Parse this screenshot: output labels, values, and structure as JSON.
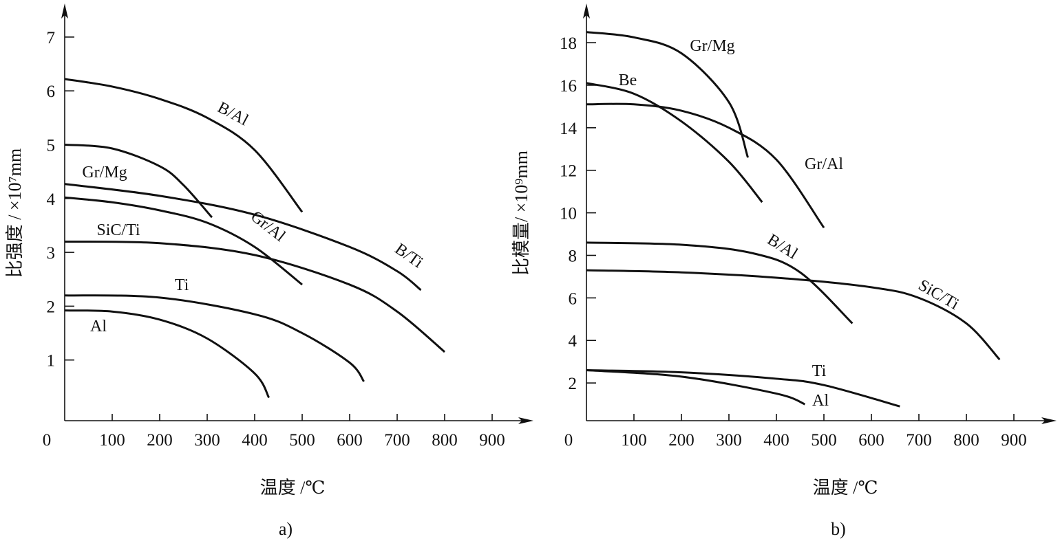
{
  "chart_data": [
    {
      "type": "line",
      "panel_label": "a)",
      "xlabel": "温度 /℃",
      "ylabel": "比强度 / ×10⁷mm",
      "xlim": [
        0,
        900
      ],
      "ylim": [
        0,
        7
      ],
      "x_ticks": [
        0,
        100,
        200,
        300,
        400,
        500,
        600,
        700,
        800,
        900
      ],
      "y_ticks": [
        1,
        2,
        3,
        4,
        5,
        6,
        7
      ],
      "series": [
        {
          "name": "B/Al",
          "x": [
            0,
            100,
            200,
            300,
            400,
            500
          ],
          "y": [
            6.22,
            6.08,
            5.85,
            5.5,
            4.9,
            3.75
          ]
        },
        {
          "name": "Gr/Mg",
          "x": [
            0,
            100,
            200,
            250,
            310
          ],
          "y": [
            5.0,
            4.93,
            4.6,
            4.25,
            3.65
          ]
        },
        {
          "name": "B/Ti",
          "x": [
            0,
            200,
            400,
            600,
            700,
            750
          ],
          "y": [
            4.27,
            4.05,
            3.7,
            3.1,
            2.65,
            2.3
          ]
        },
        {
          "name": "Gr/Al",
          "x": [
            0,
            100,
            200,
            300,
            400,
            500
          ],
          "y": [
            4.02,
            3.93,
            3.78,
            3.55,
            3.1,
            2.4
          ]
        },
        {
          "name": "SiC/Ti",
          "x": [
            0,
            200,
            400,
            600,
            700,
            800
          ],
          "y": [
            3.2,
            3.17,
            2.95,
            2.4,
            1.9,
            1.15
          ]
        },
        {
          "name": "Ti",
          "x": [
            0,
            200,
            400,
            500,
            600,
            630
          ],
          "y": [
            2.2,
            2.16,
            1.85,
            1.5,
            0.95,
            0.6
          ]
        },
        {
          "name": "Al",
          "x": [
            0,
            100,
            200,
            300,
            400,
            430
          ],
          "y": [
            1.92,
            1.9,
            1.75,
            1.4,
            0.75,
            0.3
          ]
        }
      ]
    },
    {
      "type": "line",
      "panel_label": "b)",
      "xlabel": "温度 /℃",
      "ylabel": "比模量/ ×10⁹mm",
      "xlim": [
        0,
        900
      ],
      "ylim": [
        0,
        18
      ],
      "x_ticks": [
        0,
        100,
        200,
        300,
        400,
        500,
        600,
        700,
        800,
        900
      ],
      "y_ticks": [
        2,
        4,
        6,
        8,
        10,
        12,
        14,
        16,
        18
      ],
      "series": [
        {
          "name": "Gr/Mg",
          "x": [
            0,
            100,
            200,
            300,
            340
          ],
          "y": [
            18.5,
            18.25,
            17.5,
            15.2,
            12.6
          ]
        },
        {
          "name": "Be",
          "x": [
            0,
            100,
            200,
            300,
            370
          ],
          "y": [
            16.1,
            15.6,
            14.3,
            12.4,
            10.5
          ]
        },
        {
          "name": "Gr/Al",
          "x": [
            0,
            100,
            200,
            300,
            400,
            500
          ],
          "y": [
            15.1,
            15.1,
            14.8,
            14.0,
            12.5,
            9.3
          ]
        },
        {
          "name": "B/Al",
          "x": [
            0,
            200,
            350,
            450,
            560
          ],
          "y": [
            8.6,
            8.5,
            8.1,
            7.2,
            4.8
          ]
        },
        {
          "name": "SiC/Ti",
          "x": [
            0,
            200,
            400,
            600,
            700,
            800,
            870
          ],
          "y": [
            7.3,
            7.2,
            6.95,
            6.5,
            6.0,
            4.8,
            3.1
          ]
        },
        {
          "name": "Ti",
          "x": [
            0,
            200,
            400,
            500,
            660
          ],
          "y": [
            2.6,
            2.5,
            2.2,
            1.9,
            0.9
          ]
        },
        {
          "name": "Al",
          "x": [
            0,
            200,
            400,
            460
          ],
          "y": [
            2.6,
            2.3,
            1.5,
            1.0
          ]
        }
      ]
    }
  ]
}
